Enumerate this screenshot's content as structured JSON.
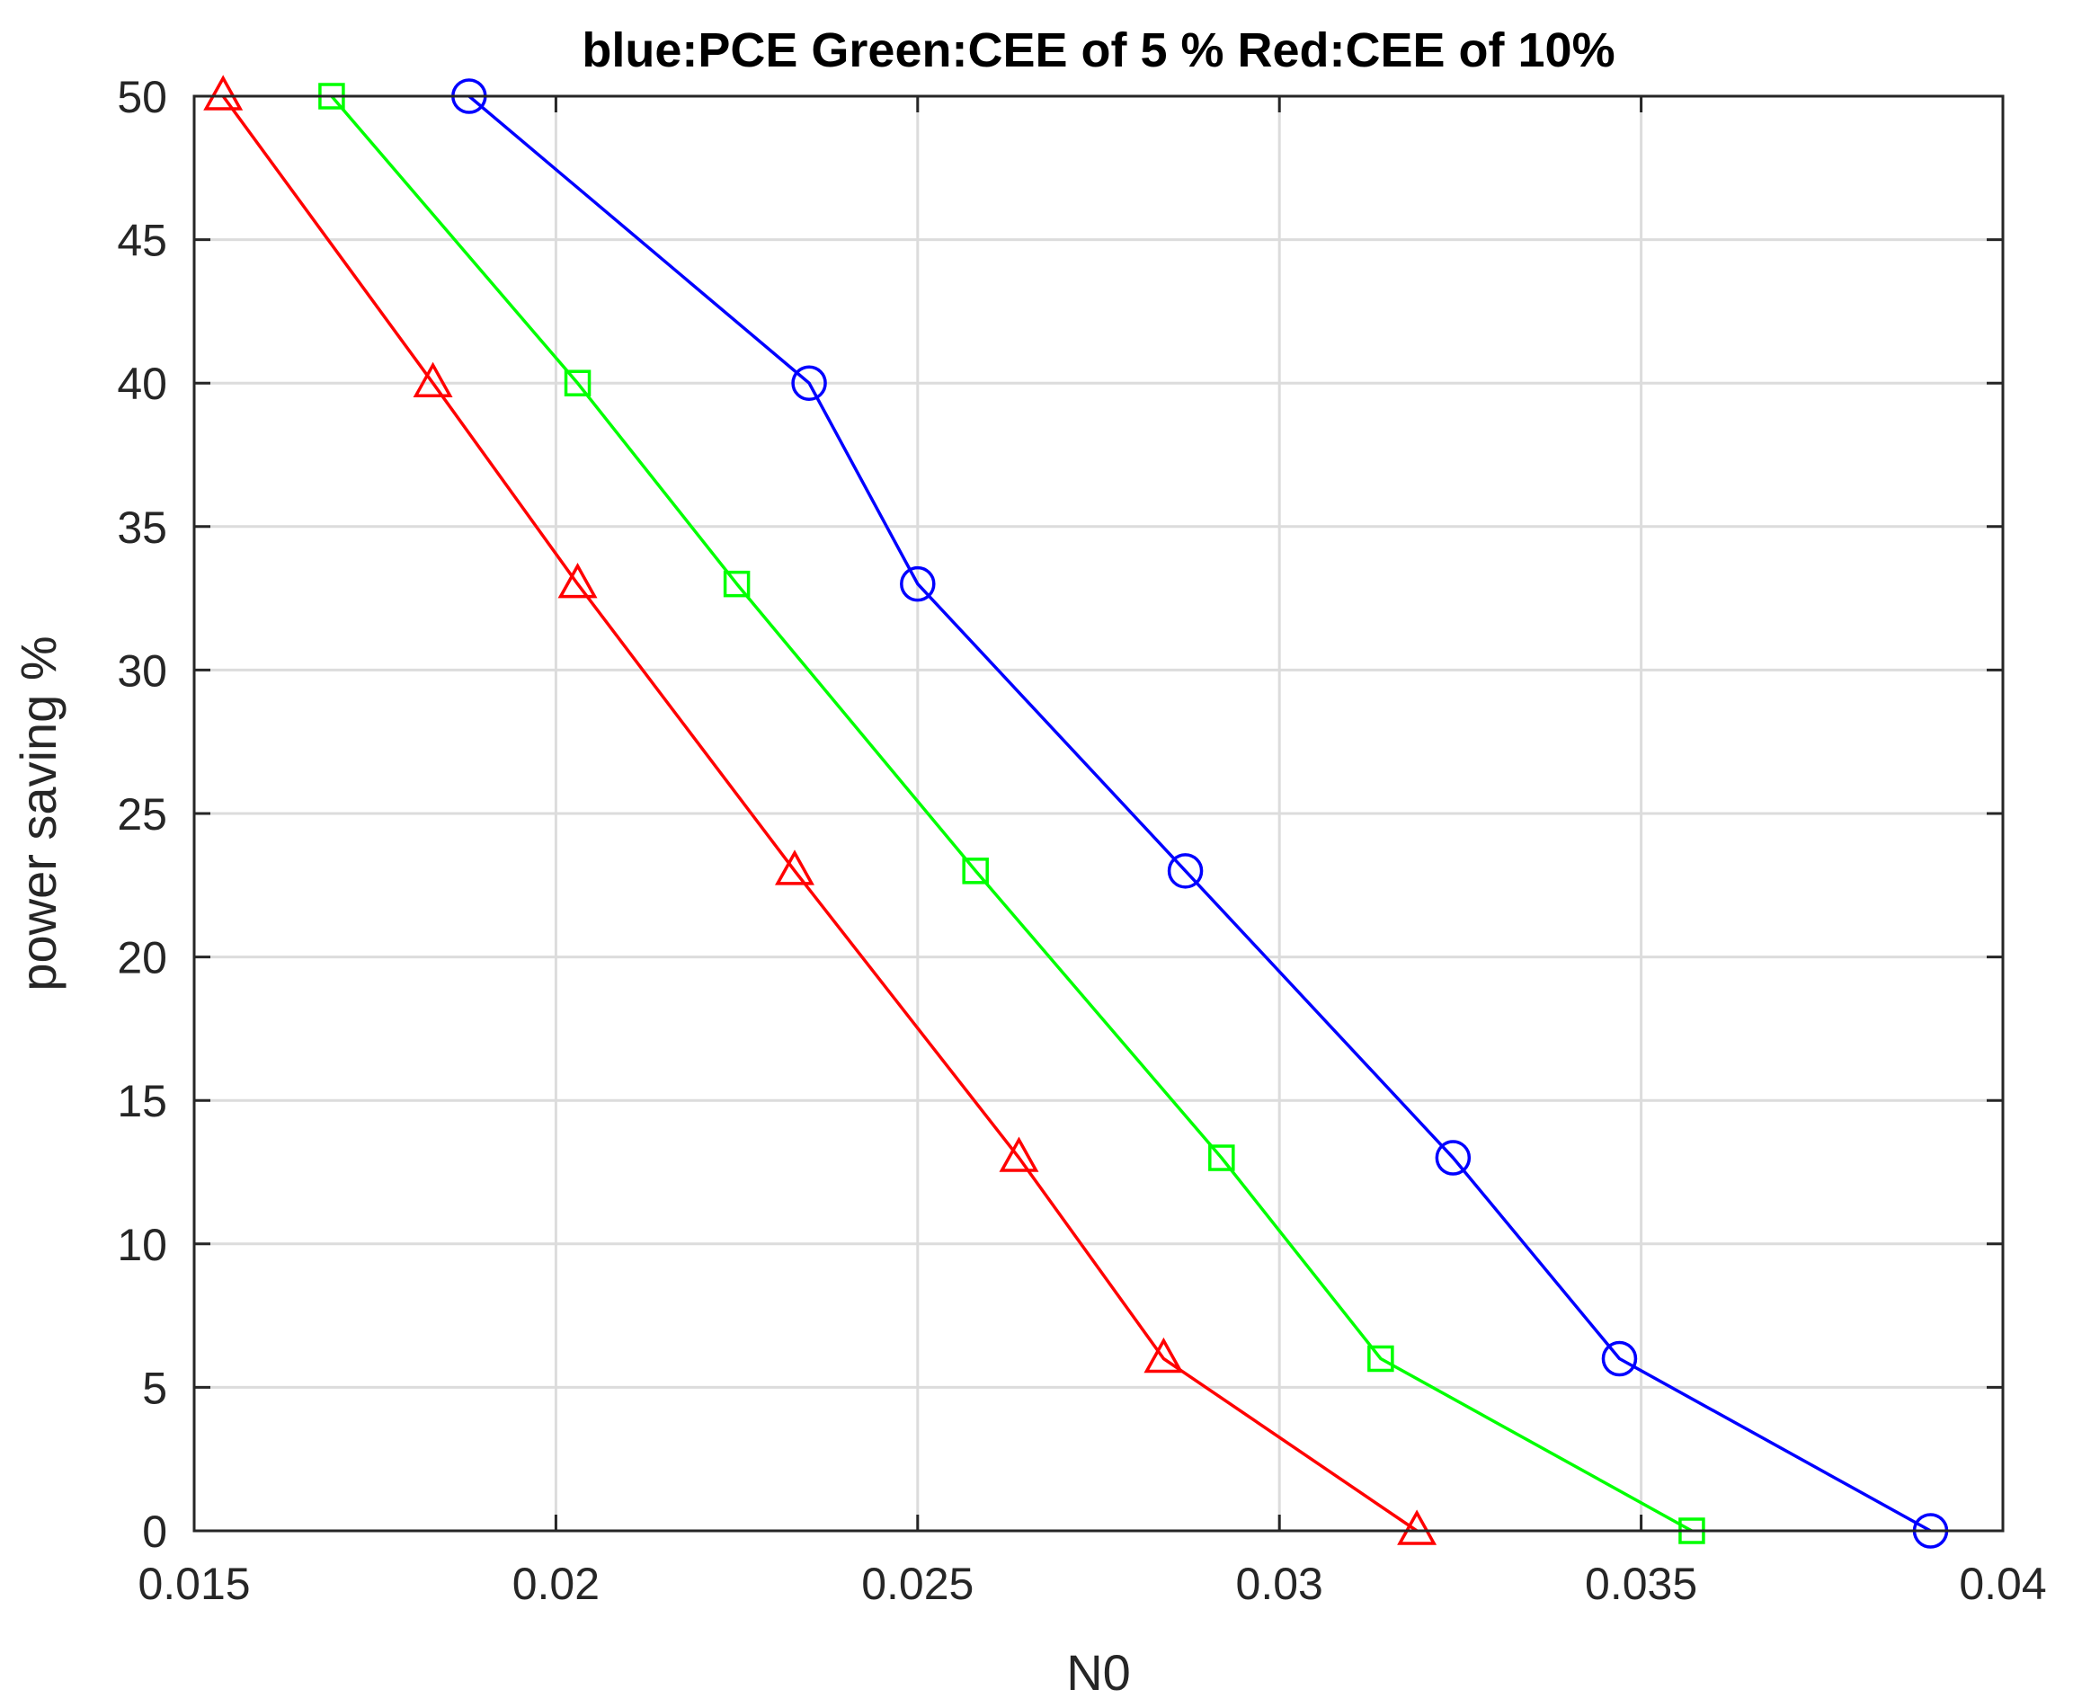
{
  "chart_data": {
    "type": "line",
    "title": "blue:PCE Green:CEE of 5 %  Red:CEE of 10%",
    "xlabel": "N0",
    "ylabel": "power saving %",
    "xlim": [
      0.015,
      0.04
    ],
    "ylim": [
      0,
      50
    ],
    "xticks": [
      "0.015",
      "0.02",
      "0.025",
      "0.03",
      "0.035",
      "0.04"
    ],
    "yticks": [
      "0",
      "5",
      "10",
      "15",
      "20",
      "25",
      "30",
      "35",
      "40",
      "45",
      "50"
    ],
    "grid": true,
    "legend": "none",
    "series": [
      {
        "key": "blue",
        "color": "#0000ff",
        "marker": "circle",
        "x": [
          0.0188,
          0.0235,
          0.025,
          0.0287,
          0.0324,
          0.0347,
          0.039
        ],
        "y": [
          50,
          40,
          33,
          23,
          13,
          6,
          0
        ]
      },
      {
        "key": "green",
        "color": "#00ff00",
        "marker": "square",
        "x": [
          0.0169,
          0.0203,
          0.0225,
          0.0258,
          0.0292,
          0.0314,
          0.0357
        ],
        "y": [
          50,
          40,
          33,
          23,
          13,
          6,
          0
        ]
      },
      {
        "key": "red",
        "color": "#ff0000",
        "marker": "triangle",
        "x": [
          0.0154,
          0.0183,
          0.0203,
          0.0233,
          0.0264,
          0.0284,
          0.0319
        ],
        "y": [
          50,
          40,
          33,
          23,
          13,
          6,
          0
        ]
      }
    ]
  }
}
